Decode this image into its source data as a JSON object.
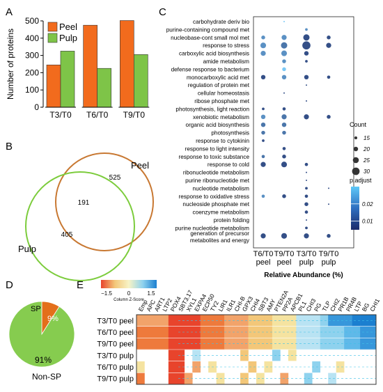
{
  "panels": {
    "A": "A",
    "B": "B",
    "C": "C",
    "D": "D",
    "E": "E"
  },
  "chart_data": [
    {
      "type": "bar",
      "categories": [
        "T3/T0",
        "T6/T0",
        "T9/T0"
      ],
      "series": [
        {
          "name": "Peel",
          "values": [
            245,
            475,
            502
          ],
          "color": "#f26b1d"
        },
        {
          "name": "Pulp",
          "values": [
            325,
            225,
            305
          ],
          "color": "#7ec448"
        }
      ],
      "ylabel": "Number of proteins",
      "ylim": [
        0,
        500
      ],
      "yticks": [
        0,
        100,
        200,
        300,
        400,
        500
      ]
    },
    {
      "type": "scatter",
      "xlabel": "Relative Abundance (%)",
      "x": [
        [
          "T6/T0",
          "peel"
        ],
        [
          "T9/T0",
          "peel"
        ],
        [
          "T3/T0",
          "pulp"
        ],
        [
          "T9/T0",
          "pulp"
        ]
      ],
      "terms": [
        "carbohydrate deriv bio",
        "purine-containing compound met",
        "nucleobase-cont small mol met",
        "response to stress",
        "carboxylic acid biosynthesis",
        "amide metabolism",
        "defense response to bacterium",
        "monocarboxylic acid met",
        "regulation of protein met",
        "cellular homeostasis",
        "ribose phosphate met",
        "photosynthesis, light reaction",
        "xenobiotic metabolism",
        "organic acid biosynthesis",
        "photosynthesis",
        "response to cytokinin",
        "response to light intensity",
        "response to toxic substance",
        "response to cold",
        "ribonucleotide metabolism",
        "purine ribonucleotide met",
        "nucleotide metabolism",
        "response to oxidative stress",
        "nucleoside phosphate met",
        "coenzyme metabolism",
        "protein folding",
        "purine nucleotide metabolism",
        [
          "generation of precursor",
          "metabolites and energy"
        ]
      ],
      "points": [
        [
          0,
          1,
          10,
          0.03
        ],
        [
          1,
          2,
          14,
          0.02
        ],
        [
          2,
          0,
          18,
          0.02
        ],
        [
          2,
          1,
          22,
          0.02
        ],
        [
          2,
          2,
          26,
          0.008
        ],
        [
          2,
          3,
          18,
          0.008
        ],
        [
          3,
          0,
          24,
          0.02
        ],
        [
          3,
          1,
          26,
          0.015
        ],
        [
          3,
          2,
          32,
          0.008
        ],
        [
          3,
          3,
          22,
          0.008
        ],
        [
          4,
          0,
          22,
          0.02
        ],
        [
          4,
          1,
          24,
          0.02
        ],
        [
          4,
          2,
          20,
          0.008
        ],
        [
          5,
          1,
          18,
          0.02
        ],
        [
          5,
          2,
          14,
          0.008
        ],
        [
          6,
          1,
          18,
          0.03
        ],
        [
          7,
          0,
          20,
          0.008
        ],
        [
          7,
          1,
          20,
          0.02
        ],
        [
          7,
          2,
          20,
          0.008
        ],
        [
          7,
          3,
          16,
          0.008
        ],
        [
          8,
          2,
          10,
          0.008
        ],
        [
          9,
          1,
          10,
          0.008
        ],
        [
          10,
          2,
          10,
          0.008
        ],
        [
          11,
          0,
          14,
          0.008
        ],
        [
          11,
          1,
          16,
          0.008
        ],
        [
          12,
          0,
          20,
          0.02
        ],
        [
          12,
          1,
          22,
          0.015
        ],
        [
          12,
          2,
          22,
          0.008
        ],
        [
          12,
          3,
          18,
          0.008
        ],
        [
          13,
          0,
          20,
          0.015
        ],
        [
          13,
          1,
          20,
          0.015
        ],
        [
          14,
          0,
          18,
          0.015
        ],
        [
          14,
          1,
          18,
          0.015
        ],
        [
          15,
          0,
          14,
          0.008
        ],
        [
          16,
          1,
          16,
          0.008
        ],
        [
          17,
          0,
          16,
          0.015
        ],
        [
          17,
          1,
          18,
          0.008
        ],
        [
          18,
          0,
          22,
          0.008
        ],
        [
          18,
          1,
          24,
          0.008
        ],
        [
          18,
          2,
          16,
          0.008
        ],
        [
          19,
          2,
          10,
          0.008
        ],
        [
          20,
          2,
          10,
          0.008
        ],
        [
          21,
          2,
          14,
          0.008
        ],
        [
          21,
          3,
          10,
          0.008
        ],
        [
          22,
          0,
          16,
          0.02
        ],
        [
          22,
          1,
          18,
          0.008
        ],
        [
          22,
          2,
          16,
          0.008
        ],
        [
          23,
          2,
          18,
          0.008
        ],
        [
          23,
          3,
          10,
          0.008
        ],
        [
          24,
          2,
          16,
          0.008
        ],
        [
          25,
          2,
          10,
          0.008
        ],
        [
          26,
          2,
          14,
          0.008
        ],
        [
          27,
          0,
          22,
          0.008
        ],
        [
          27,
          1,
          24,
          0.008
        ],
        [
          27,
          2,
          22,
          0.008
        ],
        [
          27,
          3,
          18,
          0.008
        ]
      ],
      "size_legend": {
        "title": "Count",
        "values": [
          15,
          20,
          25,
          30
        ]
      },
      "color_legend": {
        "title": "p.adjust",
        "ticks": [
          0.02,
          0.01
        ],
        "range": [
          0.005,
          0.03
        ]
      }
    },
    {
      "type": "pie",
      "labels": [
        "SP",
        "Non-SP"
      ],
      "values": [
        9,
        91
      ],
      "value_labels": [
        "9%",
        "91%"
      ],
      "colors": [
        "#e36f1b",
        "#86cc4f"
      ]
    },
    {
      "type": "heatmap",
      "columns": [
        "Emp",
        "APC",
        "ART1",
        "LTP2",
        "POX4",
        "SBT3.17",
        "XYL1",
        "EXPA4",
        "ECP50",
        "TY2",
        "LIR1",
        "ILR1",
        "CHI-B",
        "GPX3",
        "CHI4",
        "SBT3",
        "AMY",
        "PTEN2A",
        "PP2A",
        "APCB1",
        "PL1",
        "CHI3",
        "PG",
        "TLP",
        "CHI2",
        "PR1B",
        "PR4B",
        "LTP",
        "BG",
        "CHI1"
      ],
      "rows": [
        "T3/T0 peel",
        "T6/T0 peel",
        "T9/T0 peel",
        "T3/T0 pulp",
        "T6/T0 pulp",
        "T9/T0 pulp"
      ],
      "legend": {
        "title": "Column Z-Score",
        "ticks": [
          "−1.5",
          "0",
          "1.5"
        ]
      }
    }
  ],
  "venn": {
    "peel_label": "Peel",
    "pulp_label": "Pulp",
    "peel_only": "525",
    "overlap": "191",
    "pulp_only": "405",
    "peel_color": "#c87832",
    "pulp_color": "#7ccc3c"
  }
}
